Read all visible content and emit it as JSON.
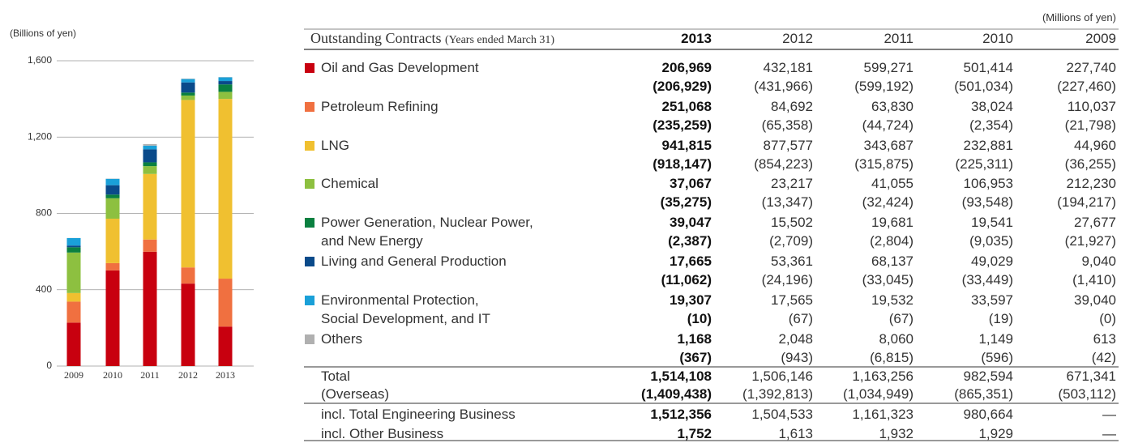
{
  "chart_data": {
    "type": "stacked_bar",
    "y_label": "(Billions of yen)",
    "categories": [
      "2009",
      "2010",
      "2011",
      "2012",
      "2013"
    ],
    "ylim": [
      0,
      1600
    ],
    "yticks": [
      0,
      {
        "value": 400,
        "label": "400"
      },
      {
        "value": 800,
        "label": "800"
      },
      {
        "value": 1200,
        "label": "1,200"
      },
      {
        "value": 1600,
        "label": "1,600"
      }
    ],
    "grid": true,
    "series": [
      {
        "name": "Oil and Gas Development",
        "color": "#c8000f",
        "values": [
          227.7,
          501.4,
          599.3,
          432.2,
          207.0
        ]
      },
      {
        "name": "Petroleum Refining",
        "color": "#f07040",
        "values": [
          110.0,
          38.0,
          63.8,
          84.7,
          251.1
        ]
      },
      {
        "name": "LNG",
        "color": "#f0c030",
        "values": [
          45.0,
          232.9,
          343.7,
          877.6,
          941.8
        ]
      },
      {
        "name": "Chemical",
        "color": "#8dc040",
        "values": [
          212.2,
          107.0,
          41.1,
          23.2,
          37.1
        ]
      },
      {
        "name": "Power Generation, Nuclear Power,\nand New Energy",
        "color": "#0a8040",
        "values": [
          27.7,
          19.5,
          19.7,
          15.5,
          39.0
        ]
      },
      {
        "name": "Living and General Production",
        "color": "#0a4a8a",
        "values": [
          9.0,
          49.0,
          68.1,
          53.4,
          17.7
        ]
      },
      {
        "name": "Environmental Protection,\nSocial Development, and IT",
        "color": "#1aa0d8",
        "values": [
          39.0,
          33.6,
          19.5,
          17.6,
          19.3
        ]
      },
      {
        "name": "Others",
        "color": "#b0b0b0",
        "values": [
          0.6,
          1.1,
          8.1,
          2.0,
          1.2
        ]
      }
    ]
  },
  "table": {
    "unit": "(Millions of yen)",
    "title": "Outstanding Contracts",
    "title_note": "(Years ended March 31)",
    "columns": [
      "2013",
      "2012",
      "2011",
      "2010",
      "2009"
    ],
    "rows": [
      {
        "values": [
          "206,969",
          "432,181",
          "599,271",
          "501,414",
          "227,740"
        ],
        "overseas": [
          "(206,929)",
          "(431,966)",
          "(599,192)",
          "(501,034)",
          "(227,460)"
        ]
      },
      {
        "values": [
          "251,068",
          "84,692",
          "63,830",
          "38,024",
          "110,037"
        ],
        "overseas": [
          "(235,259)",
          "(65,358)",
          "(44,724)",
          "(2,354)",
          "(21,798)"
        ]
      },
      {
        "values": [
          "941,815",
          "877,577",
          "343,687",
          "232,881",
          "44,960"
        ],
        "overseas": [
          "(918,147)",
          "(854,223)",
          "(315,875)",
          "(225,311)",
          "(36,255)"
        ]
      },
      {
        "values": [
          "37,067",
          "23,217",
          "41,055",
          "106,953",
          "212,230"
        ],
        "overseas": [
          "(35,275)",
          "(13,347)",
          "(32,424)",
          "(93,548)",
          "(194,217)"
        ]
      },
      {
        "values": [
          "39,047",
          "15,502",
          "19,681",
          "19,541",
          "27,677"
        ],
        "overseas": [
          "(2,387)",
          "(2,709)",
          "(2,804)",
          "(9,035)",
          "(21,927)"
        ]
      },
      {
        "values": [
          "17,665",
          "53,361",
          "68,137",
          "49,029",
          "9,040"
        ],
        "overseas": [
          "(11,062)",
          "(24,196)",
          "(33,045)",
          "(33,449)",
          "(1,410)"
        ]
      },
      {
        "values": [
          "19,307",
          "17,565",
          "19,532",
          "33,597",
          "39,040"
        ],
        "overseas": [
          "(10)",
          "(67)",
          "(67)",
          "(19)",
          "(0)"
        ]
      },
      {
        "values": [
          "1,168",
          "2,048",
          "8,060",
          "1,149",
          "613"
        ],
        "overseas": [
          "(367)",
          "(943)",
          "(6,815)",
          "(596)",
          "(42)"
        ]
      }
    ],
    "summary": [
      {
        "label": "Total",
        "values": [
          "1,514,108",
          "1,506,146",
          "1,163,256",
          "982,594",
          "671,341"
        ]
      },
      {
        "label": "(Overseas)",
        "values": [
          "(1,409,438)",
          "(1,392,813)",
          "(1,034,949)",
          "(865,351)",
          "(503,112)"
        ]
      },
      {
        "label": "incl. Total Engineering Business",
        "values": [
          "1,512,356",
          "1,504,533",
          "1,161,323",
          "980,664",
          "—"
        ]
      },
      {
        "label": "incl. Other Business",
        "values": [
          "1,752",
          "1,613",
          "1,932",
          "1,929",
          "—"
        ]
      }
    ]
  }
}
